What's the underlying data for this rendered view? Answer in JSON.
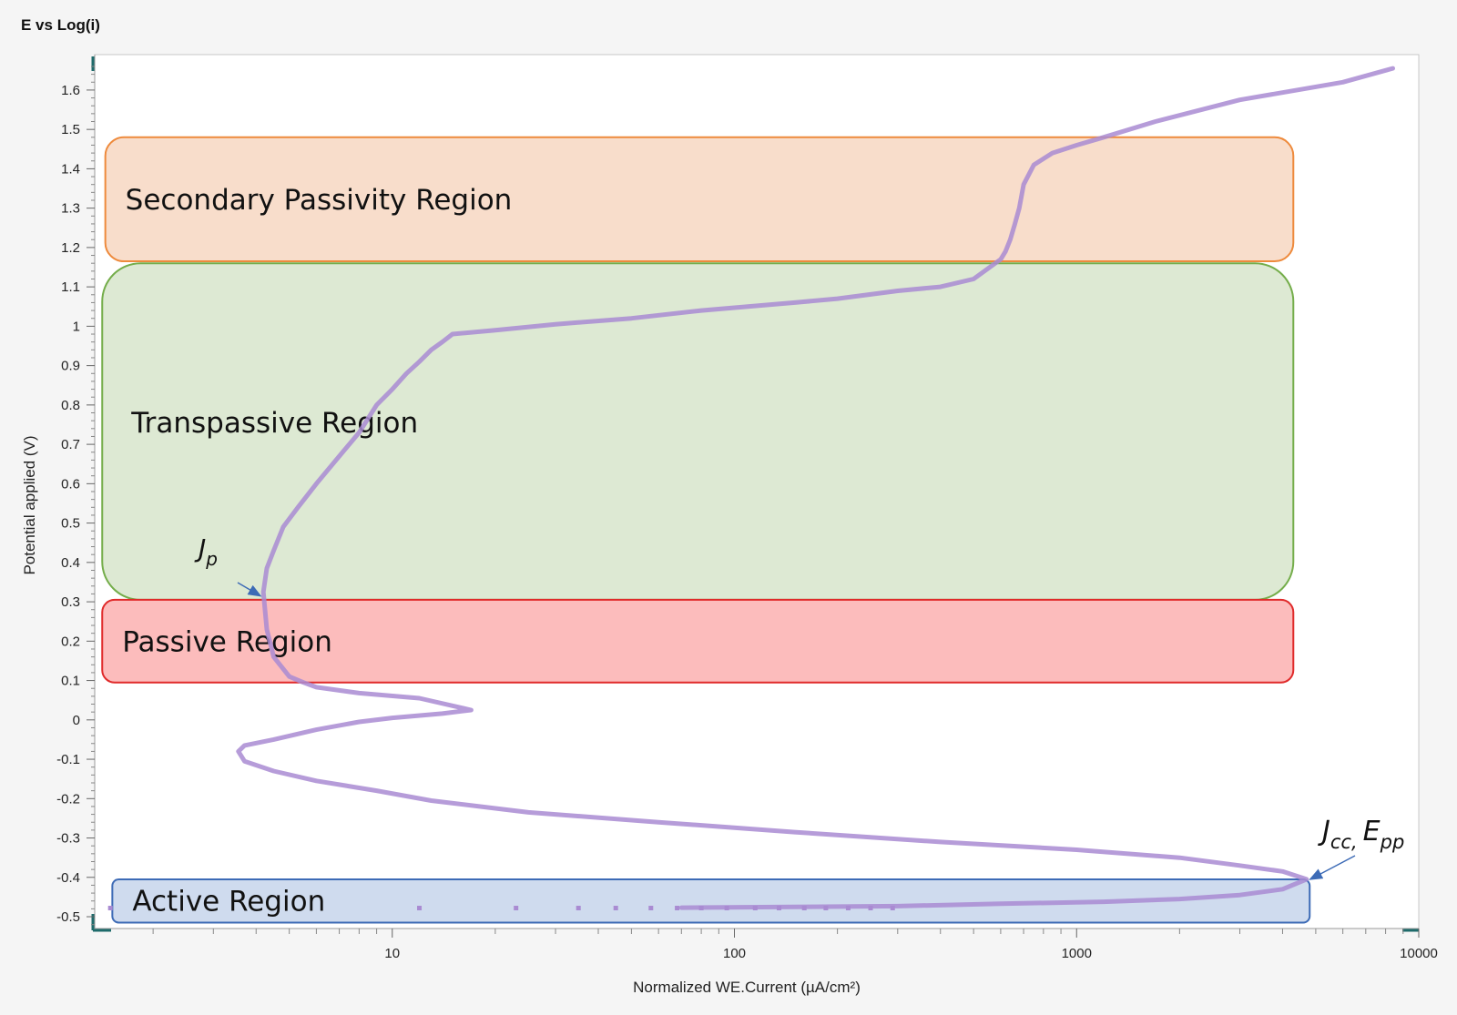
{
  "window": {
    "title": "E vs Log(i)"
  },
  "chart_data": {
    "type": "line",
    "title": "E vs Log(i)",
    "xlabel": "Normalized WE.Current (µA/cm²)",
    "ylabel": "Potential applied (V)",
    "x_scale": "log",
    "xlim": [
      1.35,
      10000
    ],
    "ylim": [
      -0.53,
      1.69
    ],
    "x_tick_labels": [
      "10",
      "100",
      "1000",
      "10000"
    ],
    "x_tick_values": [
      10,
      100,
      1000,
      10000
    ],
    "y_tick_labels": [
      "1.6",
      "1.5",
      "1.4",
      "1.3",
      "1.2",
      "1.1",
      "1",
      "0.9",
      "0.8",
      "0.7",
      "0.6",
      "0.5",
      "0.4",
      "0.3",
      "0.2",
      "0.1",
      "0",
      "-0.1",
      "-0.2",
      "-0.3",
      "-0.4",
      "-0.5"
    ],
    "y_tick_values": [
      1.6,
      1.5,
      1.4,
      1.3,
      1.2,
      1.1,
      1.0,
      0.9,
      0.8,
      0.7,
      0.6,
      0.5,
      0.4,
      0.3,
      0.2,
      0.1,
      0,
      -0.1,
      -0.2,
      -0.3,
      -0.4,
      -0.5
    ],
    "grid": false,
    "series_color": "#a98bd2",
    "series": [
      {
        "name": "",
        "x": [
          8400,
          6000,
          3000,
          1700,
          1200,
          1000,
          850,
          750,
          700,
          680,
          660,
          640,
          620,
          600,
          500,
          400,
          300,
          200,
          150,
          80,
          50,
          30,
          20,
          15,
          14,
          13,
          12,
          11,
          10,
          9,
          8,
          7,
          6,
          5.3,
          4.8,
          4.5,
          4.3,
          4.2,
          4.3,
          4.5,
          5.0,
          5.5,
          6,
          7,
          8,
          12,
          17,
          14,
          10,
          8,
          6,
          4.5,
          3.7,
          3.55,
          3.7,
          4.5,
          6,
          9,
          13,
          25,
          60,
          150,
          400,
          1000,
          2000,
          3000,
          4000,
          4700,
          4000,
          3000,
          2000,
          1200,
          600,
          300,
          150,
          70,
          45,
          30,
          20,
          12,
          6,
          3,
          1.5
        ],
        "y": [
          1.655,
          1.62,
          1.575,
          1.52,
          1.48,
          1.46,
          1.44,
          1.41,
          1.36,
          1.3,
          1.26,
          1.22,
          1.19,
          1.17,
          1.12,
          1.1,
          1.09,
          1.07,
          1.06,
          1.04,
          1.02,
          1.005,
          0.99,
          0.98,
          0.96,
          0.94,
          0.91,
          0.88,
          0.84,
          0.8,
          0.73,
          0.67,
          0.6,
          0.54,
          0.49,
          0.43,
          0.385,
          0.325,
          0.23,
          0.16,
          0.11,
          0.095,
          0.083,
          0.075,
          0.068,
          0.055,
          0.025,
          0.016,
          0.005,
          -0.005,
          -0.025,
          -0.05,
          -0.065,
          -0.08,
          -0.105,
          -0.13,
          -0.155,
          -0.18,
          -0.205,
          -0.235,
          -0.26,
          -0.285,
          -0.31,
          -0.33,
          -0.35,
          -0.37,
          -0.385,
          -0.405,
          -0.43,
          -0.445,
          -0.455,
          -0.462,
          -0.467,
          -0.473,
          -0.475,
          -0.477,
          -0.478,
          -0.478,
          -0.478,
          -0.478,
          -0.478,
          -0.478,
          -0.478
        ]
      }
    ],
    "regions": [
      {
        "label": "Secondary Passivity Region",
        "x_from": 1.45,
        "x_to": 4300,
        "y_from": 1.165,
        "y_to": 1.48,
        "fill": "#f8ddcb",
        "stroke": "#ee8a3c"
      },
      {
        "label": "Transpassive Region",
        "x_from": 1.42,
        "x_to": 4300,
        "y_from": 0.305,
        "y_to": 1.16,
        "fill": "#dde9d3",
        "stroke": "#74ad4a"
      },
      {
        "label": "Passive Region",
        "x_from": 1.42,
        "x_to": 4300,
        "y_from": 0.095,
        "y_to": 0.305,
        "fill": "#fcbcbc",
        "stroke": "#e02a2a"
      },
      {
        "label": "Active Region",
        "x_from": 1.52,
        "x_to": 4800,
        "y_from": -0.515,
        "y_to": -0.405,
        "fill": "#cfdbee",
        "stroke": "#3d6bb6"
      }
    ],
    "annotations": [
      {
        "label": "J",
        "subscript": "p",
        "arrow_to": {
          "x": 4.2,
          "y": 0.31
        }
      },
      {
        "label": "J",
        "subscript": "cc,",
        "label2": "E",
        "subscript2": "pp",
        "arrow_to": {
          "x": 4750,
          "y": -0.41
        }
      }
    ]
  }
}
